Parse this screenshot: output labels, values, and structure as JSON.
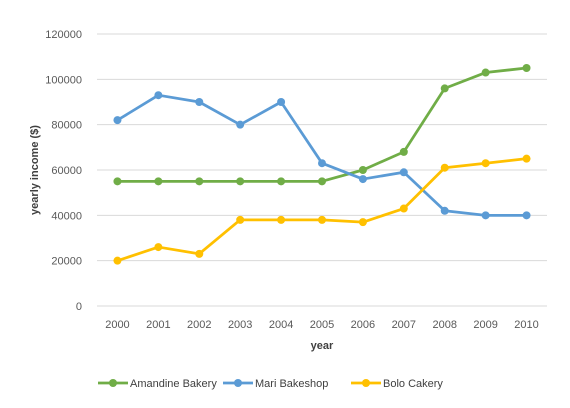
{
  "chart_data": {
    "type": "line",
    "title": "",
    "xlabel": "year",
    "ylabel": "yearly income ($)",
    "x": [
      "2000",
      "2001",
      "2002",
      "2003",
      "2004",
      "2005",
      "2006",
      "2007",
      "2008",
      "2009",
      "2010"
    ],
    "ylim": [
      0,
      120000
    ],
    "yticks": [
      0,
      20000,
      40000,
      60000,
      80000,
      100000,
      120000
    ],
    "grid": true,
    "legend_position": "bottom",
    "series": [
      {
        "name": "Amandine Bakery",
        "color": "#70ad47",
        "values": [
          55000,
          55000,
          55000,
          55000,
          55000,
          55000,
          60000,
          68000,
          96000,
          103000,
          105000
        ]
      },
      {
        "name": "Mari Bakeshop",
        "color": "#5b9bd5",
        "values": [
          82000,
          93000,
          90000,
          80000,
          90000,
          63000,
          56000,
          59000,
          42000,
          40000,
          40000
        ]
      },
      {
        "name": "Bolo Cakery",
        "color": "#ffc000",
        "values": [
          20000,
          26000,
          23000,
          38000,
          38000,
          38000,
          37000,
          43000,
          61000,
          63000,
          65000
        ]
      }
    ]
  }
}
